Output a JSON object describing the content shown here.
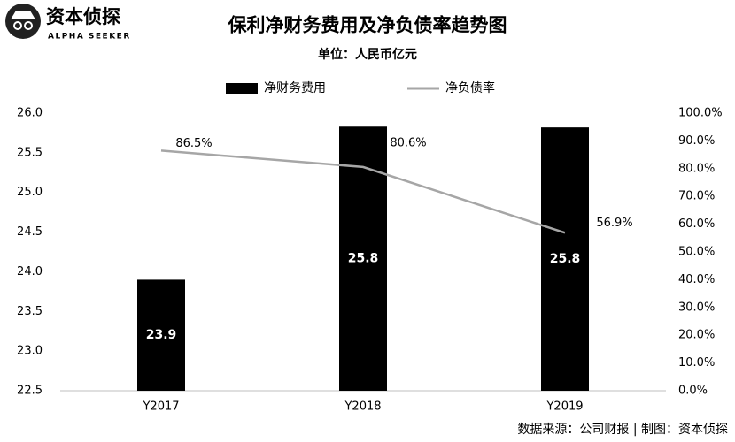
{
  "logo": {
    "name": "资本侦探",
    "tagline": "ALPHA SEEKER"
  },
  "chart_data": {
    "type": "bar",
    "title": "保利净财务费用及净负债率趋势图",
    "subtitle": "单位：人民币亿元",
    "source": "数据来源：公司财报 | 制图：资本侦探",
    "categories": [
      "Y2017",
      "Y2018",
      "Y2019"
    ],
    "series": [
      {
        "name": "净财务费用",
        "type": "bar",
        "color": "#000000",
        "values": [
          23.9,
          25.83,
          25.82
        ],
        "value_labels": [
          "23.9",
          "25.8",
          "25.8"
        ]
      },
      {
        "name": "净负债率",
        "type": "line",
        "axis": "y2",
        "color": "#a6a6a6",
        "values": [
          86.5,
          80.6,
          56.9
        ],
        "value_labels": [
          "86.5%",
          "80.6%",
          "56.9%"
        ]
      }
    ],
    "ylim": [
      22.5,
      26.0
    ],
    "yticks": [
      22.5,
      {
        "value": 23,
        "label": "23.0"
      },
      23.5,
      {
        "value": 24,
        "label": "24.0"
      },
      24.5,
      {
        "value": 25,
        "label": "25.0"
      },
      25.5,
      {
        "value": 26,
        "label": "26.0"
      }
    ],
    "y2lim": [
      0,
      100
    ],
    "y2ticks": [
      {
        "value": 0,
        "label": "0.0%"
      },
      {
        "value": 10,
        "label": "10.0%"
      },
      {
        "value": 20,
        "label": "20.0%"
      },
      {
        "value": 30,
        "label": "30.0%"
      },
      {
        "value": 40,
        "label": "40.0%"
      },
      {
        "value": 50,
        "label": "50.0%"
      },
      {
        "value": 60,
        "label": "60.0%"
      },
      {
        "value": 70,
        "label": "70.0%"
      },
      {
        "value": 80,
        "label": "80.0%"
      },
      {
        "value": 90,
        "label": "90.0%"
      },
      {
        "value": 100,
        "label": "100.0%"
      }
    ],
    "legend": "top",
    "grid": false
  }
}
